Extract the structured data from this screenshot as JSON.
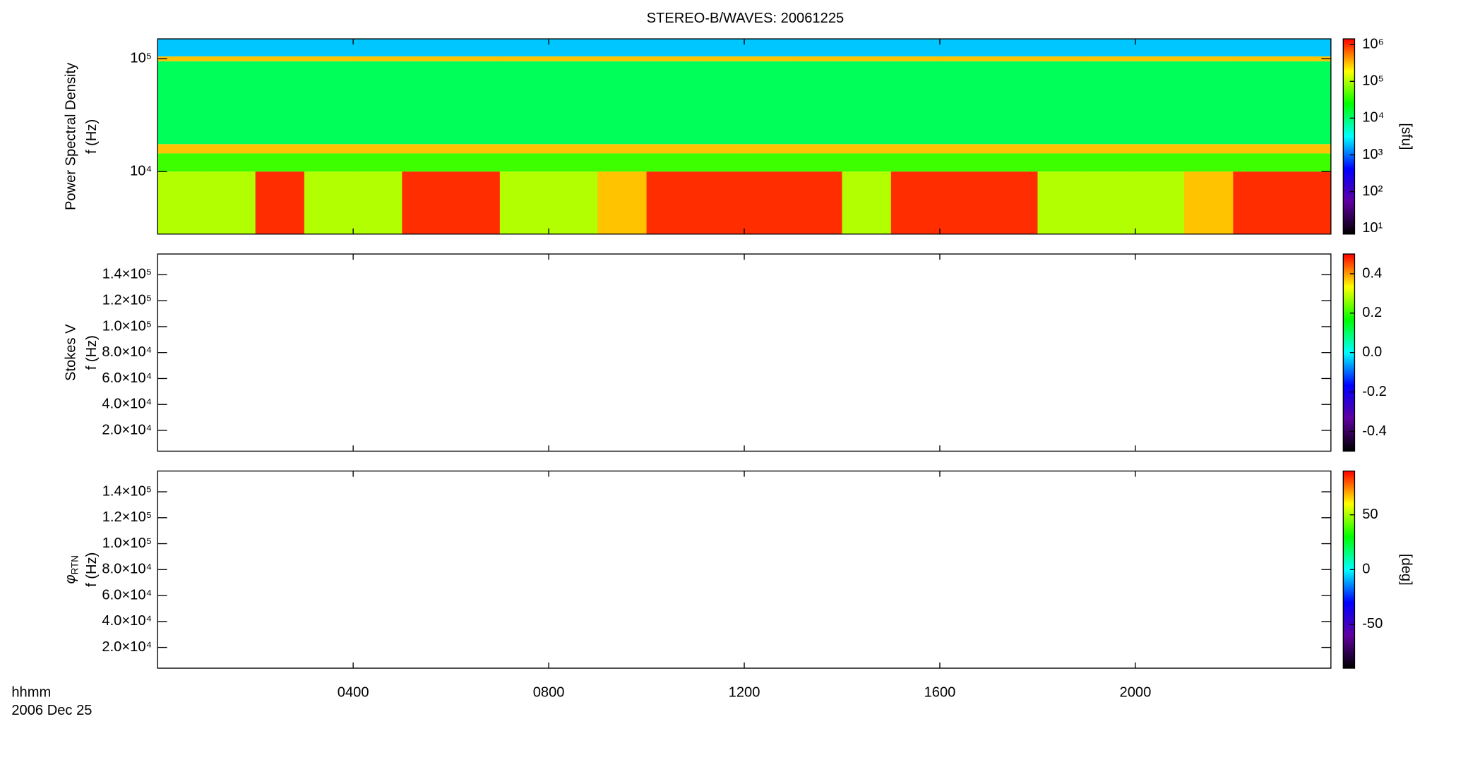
{
  "chart_data": [
    {
      "type": "heatmap",
      "title": "STEREO-B/WAVES: 20061225",
      "ylabel": [
        "Power Spectral Density",
        "f (Hz)"
      ],
      "ylog": true,
      "ylim": [
        2790,
        150000
      ],
      "yticks": [
        {
          "value": 10000,
          "label": "10⁴"
        },
        {
          "value": 100000,
          "label": "10⁵"
        }
      ],
      "x_edges": [
        0,
        1,
        2,
        3,
        4,
        5,
        6,
        7,
        8,
        9,
        10,
        11,
        12,
        13,
        14,
        15,
        16,
        17,
        18,
        19,
        20,
        21,
        22,
        23,
        24
      ],
      "y_edges": [
        2790,
        10000,
        14500,
        17500,
        95000,
        105000,
        150000
      ],
      "z": [
        [
          100000,
          100000,
          1000000,
          100000,
          100000,
          1000000,
          1000000,
          100000,
          100000,
          300000,
          1000000,
          1000000,
          1000000,
          1000000,
          100000,
          1000000,
          1000000,
          1000000,
          100000,
          100000,
          100000,
          300000,
          1000000,
          1000000
        ],
        [
          40000,
          40000,
          40000,
          40000,
          40000,
          40000,
          40000,
          40000,
          40000,
          40000,
          40000,
          40000,
          40000,
          40000,
          40000,
          40000,
          40000,
          40000,
          40000,
          40000,
          40000,
          40000,
          40000,
          40000
        ],
        [
          300000,
          300000,
          300000,
          300000,
          300000,
          300000,
          300000,
          300000,
          300000,
          300000,
          300000,
          300000,
          300000,
          300000,
          300000,
          300000,
          300000,
          300000,
          300000,
          300000,
          300000,
          300000,
          300000,
          300000
        ],
        [
          12000,
          12000,
          12000,
          12000,
          12000,
          12000,
          12000,
          12000,
          12000,
          12000,
          12000,
          12000,
          12000,
          12000,
          12000,
          12000,
          12000,
          12000,
          12000,
          12000,
          12000,
          12000,
          12000,
          12000
        ],
        [
          300000,
          300000,
          300000,
          300000,
          300000,
          300000,
          300000,
          300000,
          300000,
          300000,
          300000,
          300000,
          300000,
          300000,
          300000,
          300000,
          300000,
          300000,
          300000,
          300000,
          300000,
          300000,
          300000,
          300000
        ],
        [
          2000,
          2000,
          2000,
          2000,
          2000,
          2000,
          2000,
          2000,
          2000,
          2000,
          2000,
          2000,
          2000,
          2000,
          2000,
          2000,
          2000,
          2000,
          2000,
          2000,
          2000,
          2000,
          2000,
          2000
        ]
      ],
      "zlog": true,
      "zlim": [
        7,
        1430000
      ],
      "zticks": [
        {
          "value": 10,
          "label": "10¹"
        },
        {
          "value": 100,
          "label": "10²"
        },
        {
          "value": 1000,
          "label": "10³"
        },
        {
          "value": 10000,
          "label": "10⁴"
        },
        {
          "value": 100000,
          "label": "10⁵"
        },
        {
          "value": 1000000,
          "label": "10⁶"
        }
      ],
      "zlabel": "[sfu]",
      "colorscale": [
        "#000000",
        "#6000a0",
        "#0000ff",
        "#00ffff",
        "#00ff00",
        "#ffff00",
        "#ff0000"
      ]
    },
    {
      "type": "heatmap",
      "ylabel": [
        "Stokes V",
        "f (Hz)"
      ],
      "ylim": [
        4000,
        156000
      ],
      "yticks": [
        {
          "value": 20000,
          "label": "2.0×10⁴"
        },
        {
          "value": 40000,
          "label": "4.0×10⁴"
        },
        {
          "value": 60000,
          "label": "6.0×10⁴"
        },
        {
          "value": 80000,
          "label": "8.0×10⁴"
        },
        {
          "value": 100000,
          "label": "1.0×10⁵"
        },
        {
          "value": 120000,
          "label": "1.2×10⁵"
        },
        {
          "value": 140000,
          "label": "1.4×10⁵"
        }
      ],
      "zlim": [
        -0.5,
        0.5
      ],
      "zticks": [
        -0.4,
        -0.2,
        {
          "value": 0,
          "label": "0.0"
        },
        0.2,
        0.4
      ],
      "colorscale": [
        "#000000",
        "#6000a0",
        "#0000ff",
        "#00ffff",
        "#00ff00",
        "#ffff00",
        "#ff0000"
      ]
    },
    {
      "type": "heatmap",
      "ylabel_symbol": "φ",
      "ylabel_subscript": "RTN",
      "ylabel": [
        "f (Hz)"
      ],
      "ylim": [
        4000,
        156000
      ],
      "yticks": [
        {
          "value": 20000,
          "label": "2.0×10⁴"
        },
        {
          "value": 40000,
          "label": "4.0×10⁴"
        },
        {
          "value": 60000,
          "label": "6.0×10⁴"
        },
        {
          "value": 80000,
          "label": "8.0×10⁴"
        },
        {
          "value": 100000,
          "label": "1.0×10⁵"
        },
        {
          "value": 120000,
          "label": "1.2×10⁵"
        },
        {
          "value": 140000,
          "label": "1.4×10⁵"
        }
      ],
      "xlim": [
        0,
        24
      ],
      "xticks": [
        {
          "value": 4,
          "label": "0400"
        },
        {
          "value": 8,
          "label": "0800"
        },
        {
          "value": 12,
          "label": "1200"
        },
        {
          "value": 16,
          "label": "1600"
        },
        {
          "value": 20,
          "label": "2000"
        }
      ],
      "xlabel": [
        "hhmm",
        "2006 Dec 25"
      ],
      "zlim": [
        -90,
        90
      ],
      "zticks": [
        -50,
        0,
        50
      ],
      "zlabel": "[deg]",
      "colorscale": [
        "#000000",
        "#6000a0",
        "#0000ff",
        "#00ffff",
        "#00ff00",
        "#ffff00",
        "#ff0000"
      ]
    }
  ]
}
